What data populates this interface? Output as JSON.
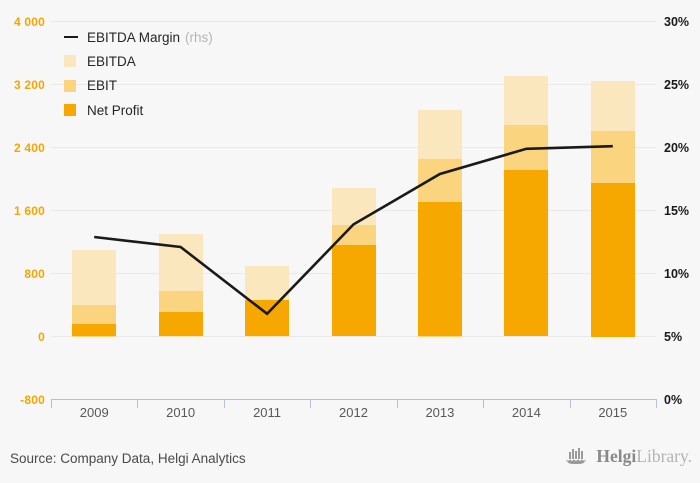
{
  "colors": {
    "background": "#F7F7F7",
    "left_axis_labels": "#F2A702",
    "right_axis_labels": "#1A1A1A",
    "margin_line": "#1A1A1A"
  },
  "chart_data": {
    "type": "bar",
    "subtype": "overlapping-bars-with-line",
    "categories": [
      "2009",
      "2010",
      "2011",
      "2012",
      "2013",
      "2014",
      "2015"
    ],
    "series": [
      {
        "name": "EBITDA",
        "type": "bar",
        "color": "#FAE7BD",
        "values": [
          1100,
          1300,
          900,
          1890,
          2880,
          3310,
          3250
        ]
      },
      {
        "name": "EBIT",
        "type": "bar",
        "color": "#FAD47E",
        "values": [
          400,
          580,
          460,
          1420,
          2250,
          2690,
          2610
        ]
      },
      {
        "name": "Net Profit",
        "type": "bar",
        "color": "#F7A800",
        "values": [
          165,
          310,
          460,
          1160,
          1710,
          2110,
          1950
        ]
      },
      {
        "name": "EBITDA Margin (rhs)",
        "type": "line",
        "axis": "right",
        "color": "#1A1A1A",
        "values": [
          12.9,
          12.1,
          6.8,
          13.9,
          17.9,
          19.9,
          20.1
        ]
      }
    ],
    "left_axis": {
      "min": -800,
      "max": 4000,
      "step": 800,
      "labels": [
        "4 000",
        "3 200",
        "2 400",
        "1 600",
        "800",
        "0",
        "-800"
      ]
    },
    "right_axis": {
      "min": 0,
      "max": 30,
      "step": 5,
      "labels": [
        "30%",
        "25%",
        "20%",
        "15%",
        "10%",
        "5%",
        "0%"
      ]
    },
    "grid": true,
    "legend_position": "top-left",
    "title": ""
  },
  "legend": {
    "items": [
      {
        "label": "EBITDA Margin",
        "suffix": "(rhs)",
        "swatch": "line"
      },
      {
        "label": "EBITDA",
        "swatch": "square"
      },
      {
        "label": "EBIT",
        "swatch": "square"
      },
      {
        "label": "Net Profit",
        "swatch": "square"
      }
    ]
  },
  "footer": {
    "source": "Source: Company Data, Helgi Analytics",
    "logo": {
      "icon": "helgi-ship-logo-icon",
      "bold": "Helgi",
      "light": "Library."
    }
  }
}
